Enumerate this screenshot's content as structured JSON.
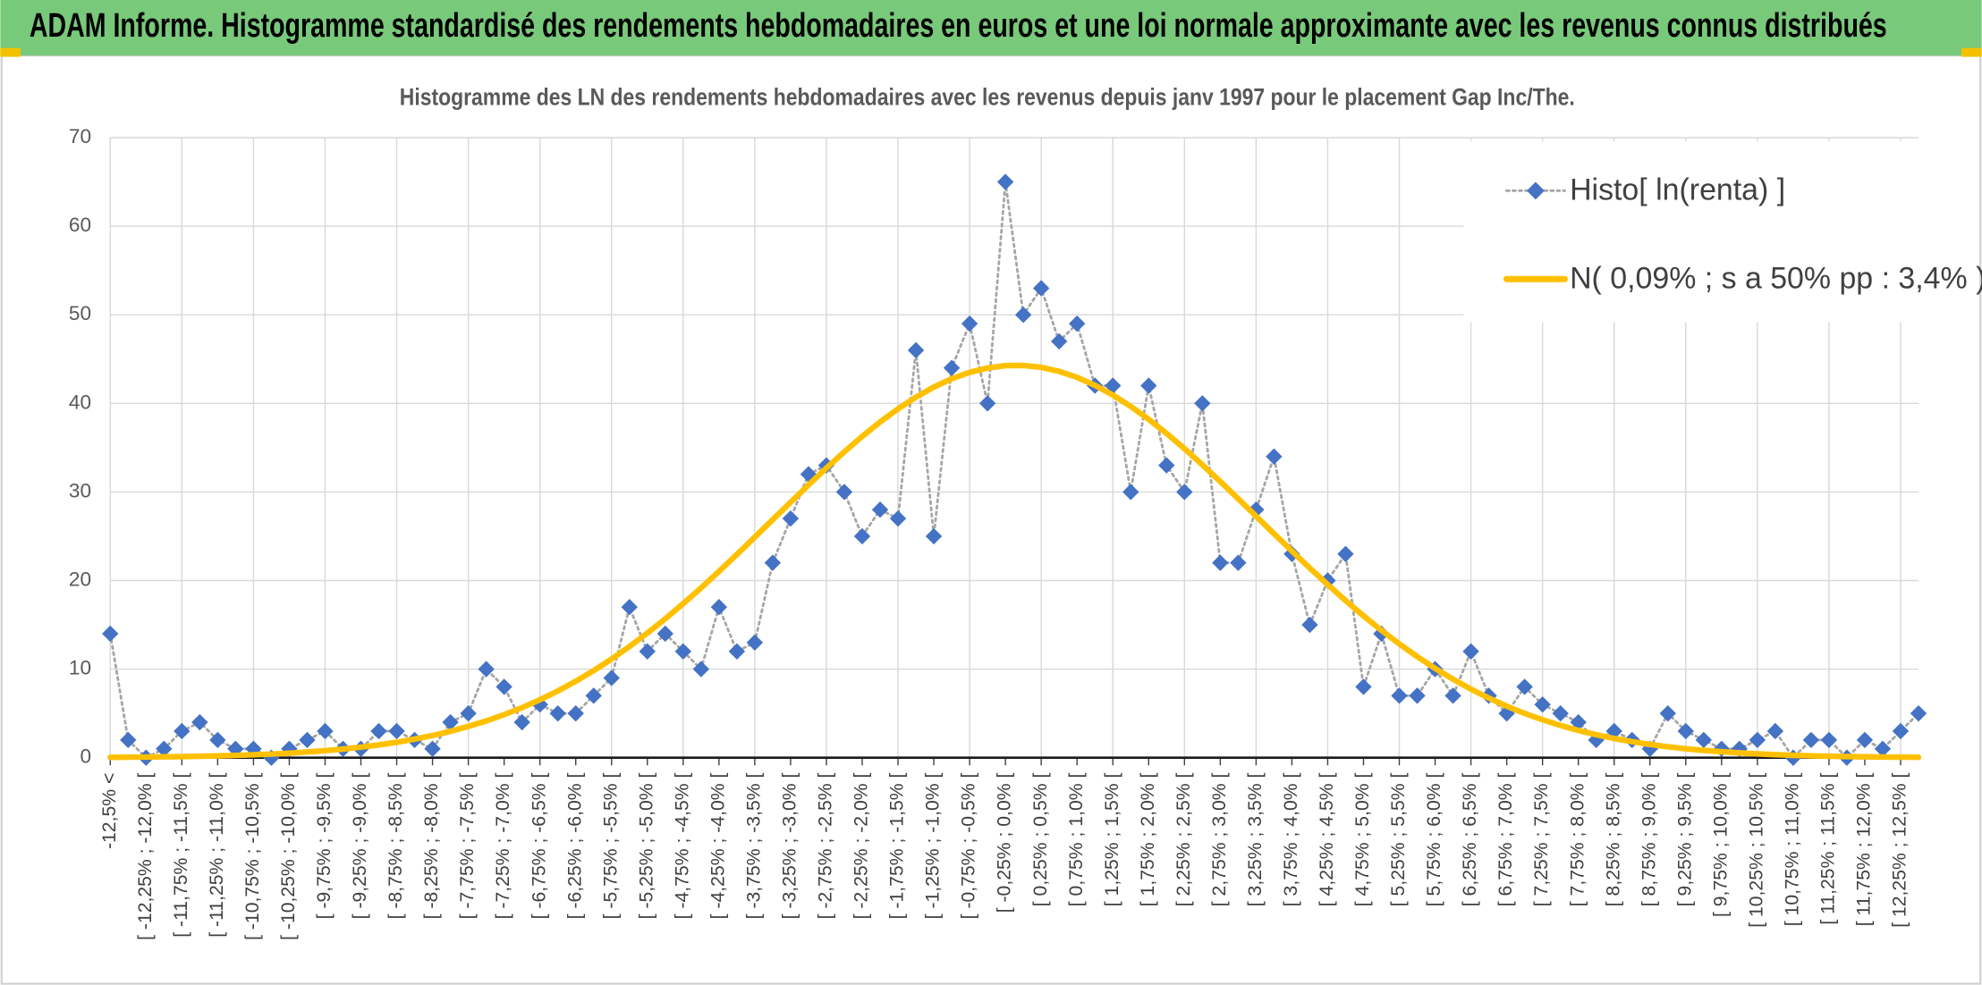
{
  "chart_data": {
    "type": "line",
    "title": "ADAM Informe. Histogramme standardisé des rendements hebdomadaires en euros et une loi normale approximante avec les revenus connus distribués",
    "subtitle": "Histogramme des LN des rendements hebdomadaires avec les revenus depuis janv 1997 pour le placement Gap Inc/The.",
    "categories": [
      "-12,5% <",
      null,
      "[ -12,25% ; -12,0% [",
      null,
      "[ -11,75% ; -11,5% [",
      null,
      "[ -11,25% ; -11,0% [",
      null,
      "[ -10,75% ; -10,5% [",
      null,
      "[ -10,25% ; -10,0% [",
      null,
      "[ -9,75% ; -9,5% [",
      null,
      "[ -9,25% ; -9,0% [",
      null,
      "[ -8,75% ; -8,5% [",
      null,
      "[ -8,25% ; -8,0% [",
      null,
      "[ -7,75% ; -7,5% [",
      null,
      "[ -7,25% ; -7,0% [",
      null,
      "[ -6,75% ; -6,5% [",
      null,
      "[ -6,25% ; -6,0% [",
      null,
      "[ -5,75% ; -5,5% [",
      null,
      "[ -5,25% ; -5,0% [",
      null,
      "[ -4,75% ; -4,5% [",
      null,
      "[ -4,25% ; -4,0% [",
      null,
      "[ -3,75% ; -3,5% [",
      null,
      "[ -3,25% ; -3,0% [",
      null,
      "[ -2,75% ; -2,5% [",
      null,
      "[ -2,25% ; -2,0% [",
      null,
      "[ -1,75% ; -1,5% [",
      null,
      "[ -1,25% ; -1,0% [",
      null,
      "[ -0,75% ; -0,5% [",
      null,
      "[ -0,25% ; 0,0% [",
      null,
      "[ 0,25% ; 0,5% [",
      null,
      "[ 0,75% ; 1,0% [",
      null,
      "[ 1,25% ; 1,5% [",
      null,
      "[ 1,75% ; 2,0% [",
      null,
      "[ 2,25% ; 2,5% [",
      null,
      "[ 2,75% ; 3,0% [",
      null,
      "[ 3,25% ; 3,5% [",
      null,
      "[ 3,75% ; 4,0% [",
      null,
      "[ 4,25% ; 4,5% [",
      null,
      "[ 4,75% ; 5,0% [",
      null,
      "[ 5,25% ; 5,5% [",
      null,
      "[ 5,75% ; 6,0% [",
      null,
      "[ 6,25% ; 6,5% [",
      null,
      "[ 6,75% ; 7,0% [",
      null,
      "[ 7,25% ; 7,5% [",
      null,
      "[ 7,75% ; 8,0% [",
      null,
      "[ 8,25% ; 8,5% [",
      null,
      "[ 8,75% ; 9,0% [",
      null,
      "[ 9,25% ; 9,5% [",
      null,
      "[ 9,75% ; 10,0% [",
      null,
      "[ 10,25% ; 10,5% [",
      null,
      "[ 10,75% ; 11,0% [",
      null,
      "[ 11,25% ; 11,5% [",
      null,
      "[ 11,75% ; 12,0% [",
      null,
      "[ 12,25% ; 12,5% [",
      null
    ],
    "series": [
      {
        "name": "Histo[ ln(renta) ]",
        "color": "#4472c4",
        "line_color": "#a6a6a6",
        "line_style": "dotted",
        "values": [
          14,
          2,
          0,
          1,
          3,
          4,
          2,
          1,
          1,
          0,
          1,
          2,
          3,
          1,
          1,
          3,
          3,
          2,
          1,
          4,
          5,
          10,
          8,
          4,
          6,
          5,
          5,
          7,
          9,
          17,
          12,
          14,
          12,
          10,
          17,
          12,
          13,
          22,
          27,
          32,
          33,
          30,
          25,
          28,
          27,
          46,
          25,
          44,
          49,
          40,
          65,
          50,
          53,
          47,
          49,
          42,
          42,
          30,
          42,
          33,
          30,
          40,
          22,
          22,
          28,
          34,
          23,
          15,
          20,
          23,
          8,
          14,
          7,
          7,
          10,
          7,
          12,
          7,
          5,
          8,
          6,
          5,
          4,
          2,
          3,
          2,
          1,
          5,
          3,
          2,
          1,
          1,
          2,
          3,
          0,
          2,
          2,
          0,
          2,
          1,
          3,
          5
        ]
      },
      {
        "name": "N( 0,09% ; s a 50% pp : 3,4% )",
        "color": "#ffc000",
        "line_style": "solid",
        "values": [
          0.04,
          0.06,
          0.07,
          0.1,
          0.12,
          0.16,
          0.2,
          0.26,
          0.33,
          0.41,
          0.51,
          0.64,
          0.79,
          0.97,
          1.19,
          1.44,
          1.74,
          2.1,
          2.5,
          2.98,
          3.53,
          4.15,
          4.86,
          5.65,
          6.54,
          7.53,
          8.63,
          9.83,
          11.14,
          12.55,
          14.07,
          15.68,
          17.39,
          19.17,
          21.03,
          22.94,
          24.9,
          26.87,
          28.84,
          30.79,
          32.69,
          34.53,
          36.27,
          37.9,
          39.38,
          40.7,
          41.84,
          42.78,
          43.5,
          43.99,
          44.26,
          44.28,
          44.07,
          43.61,
          42.94,
          42.04,
          40.94,
          39.66,
          38.2,
          36.61,
          34.89,
          33.07,
          31.18,
          29.23,
          27.26,
          25.29,
          23.33,
          21.41,
          19.54,
          17.74,
          16.01,
          14.38,
          12.85,
          11.41,
          10.08,
          8.86,
          7.74,
          6.73,
          5.82,
          5.0,
          4.28,
          3.64,
          3.08,
          2.59,
          2.17,
          1.81,
          1.5,
          1.23,
          1.01,
          0.82,
          0.67,
          0.54,
          0.43,
          0.34,
          0.27,
          0.21,
          0.17,
          0.13,
          0.1,
          0.08,
          0.06,
          0.05
        ]
      }
    ],
    "ylim": [
      0,
      70
    ],
    "yticks": [
      0,
      10,
      20,
      30,
      40,
      50,
      60,
      70
    ],
    "grid": true,
    "legend": "upper right"
  }
}
